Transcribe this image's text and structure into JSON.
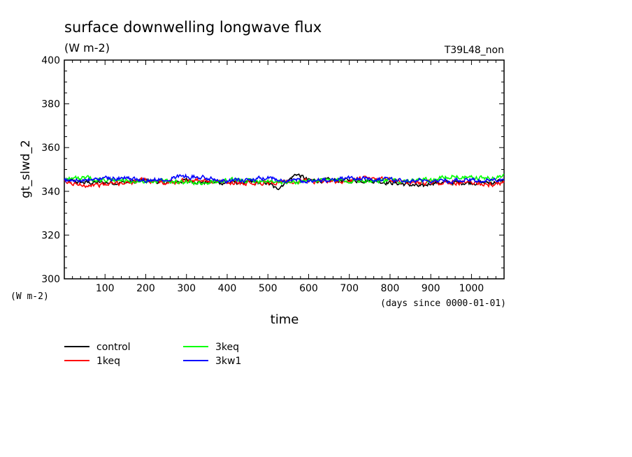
{
  "chart_data": {
    "type": "line",
    "title": "surface downwelling longwave flux",
    "subtitle": "(W m-2)",
    "run_label": "T39L48_non",
    "ylabel": "gt_slwd_2",
    "y_units": "(W m-2)",
    "xlabel": "time",
    "x_units": "(days since 0000-01-01)",
    "xlim": [
      0,
      1080
    ],
    "ylim": [
      300,
      400
    ],
    "x_ticks": [
      100,
      200,
      300,
      400,
      500,
      600,
      700,
      800,
      900,
      1000
    ],
    "y_ticks": [
      300,
      320,
      340,
      360,
      380,
      400
    ],
    "legend_position": "bottom-left",
    "grid": false,
    "series": [
      {
        "name": "control",
        "color": "#000000",
        "x": [
          0,
          50,
          100,
          150,
          200,
          250,
          300,
          350,
          400,
          450,
          500,
          520,
          550,
          570,
          600,
          650,
          700,
          750,
          800,
          850,
          880,
          900,
          950,
          1000,
          1050,
          1080
        ],
        "values": [
          345,
          344,
          344,
          344,
          345,
          344,
          345,
          344,
          344,
          344,
          344,
          341,
          345,
          348,
          345,
          345,
          345,
          345,
          344,
          343,
          342,
          344,
          344,
          344,
          344,
          345
        ]
      },
      {
        "name": "1keq",
        "color": "#ff0000",
        "x": [
          0,
          50,
          100,
          150,
          200,
          250,
          300,
          350,
          400,
          450,
          500,
          550,
          600,
          650,
          700,
          750,
          800,
          850,
          900,
          950,
          1000,
          1050,
          1080
        ],
        "values": [
          344,
          343,
          343,
          344,
          345,
          344,
          345,
          345,
          344,
          344,
          344,
          344,
          345,
          344,
          345,
          346,
          345,
          344,
          344,
          344,
          344,
          343,
          344
        ]
      },
      {
        "name": "3keq",
        "color": "#00ff00",
        "x": [
          0,
          50,
          100,
          150,
          200,
          250,
          300,
          350,
          400,
          450,
          500,
          550,
          600,
          650,
          700,
          750,
          800,
          850,
          900,
          950,
          1000,
          1050,
          1080
        ],
        "values": [
          346,
          346,
          345,
          345,
          344,
          345,
          344,
          344,
          345,
          345,
          345,
          344,
          345,
          345,
          345,
          345,
          345,
          345,
          345,
          347,
          346,
          346,
          347
        ]
      },
      {
        "name": "3kw1",
        "color": "#0000ff",
        "x": [
          0,
          50,
          100,
          150,
          200,
          250,
          300,
          350,
          400,
          450,
          500,
          550,
          600,
          650,
          700,
          750,
          800,
          850,
          900,
          950,
          1000,
          1050,
          1080
        ],
        "values": [
          345,
          345,
          346,
          346,
          345,
          346,
          347,
          346,
          345,
          345,
          346,
          345,
          345,
          345,
          346,
          346,
          345,
          345,
          345,
          345,
          345,
          345,
          345
        ]
      }
    ]
  }
}
